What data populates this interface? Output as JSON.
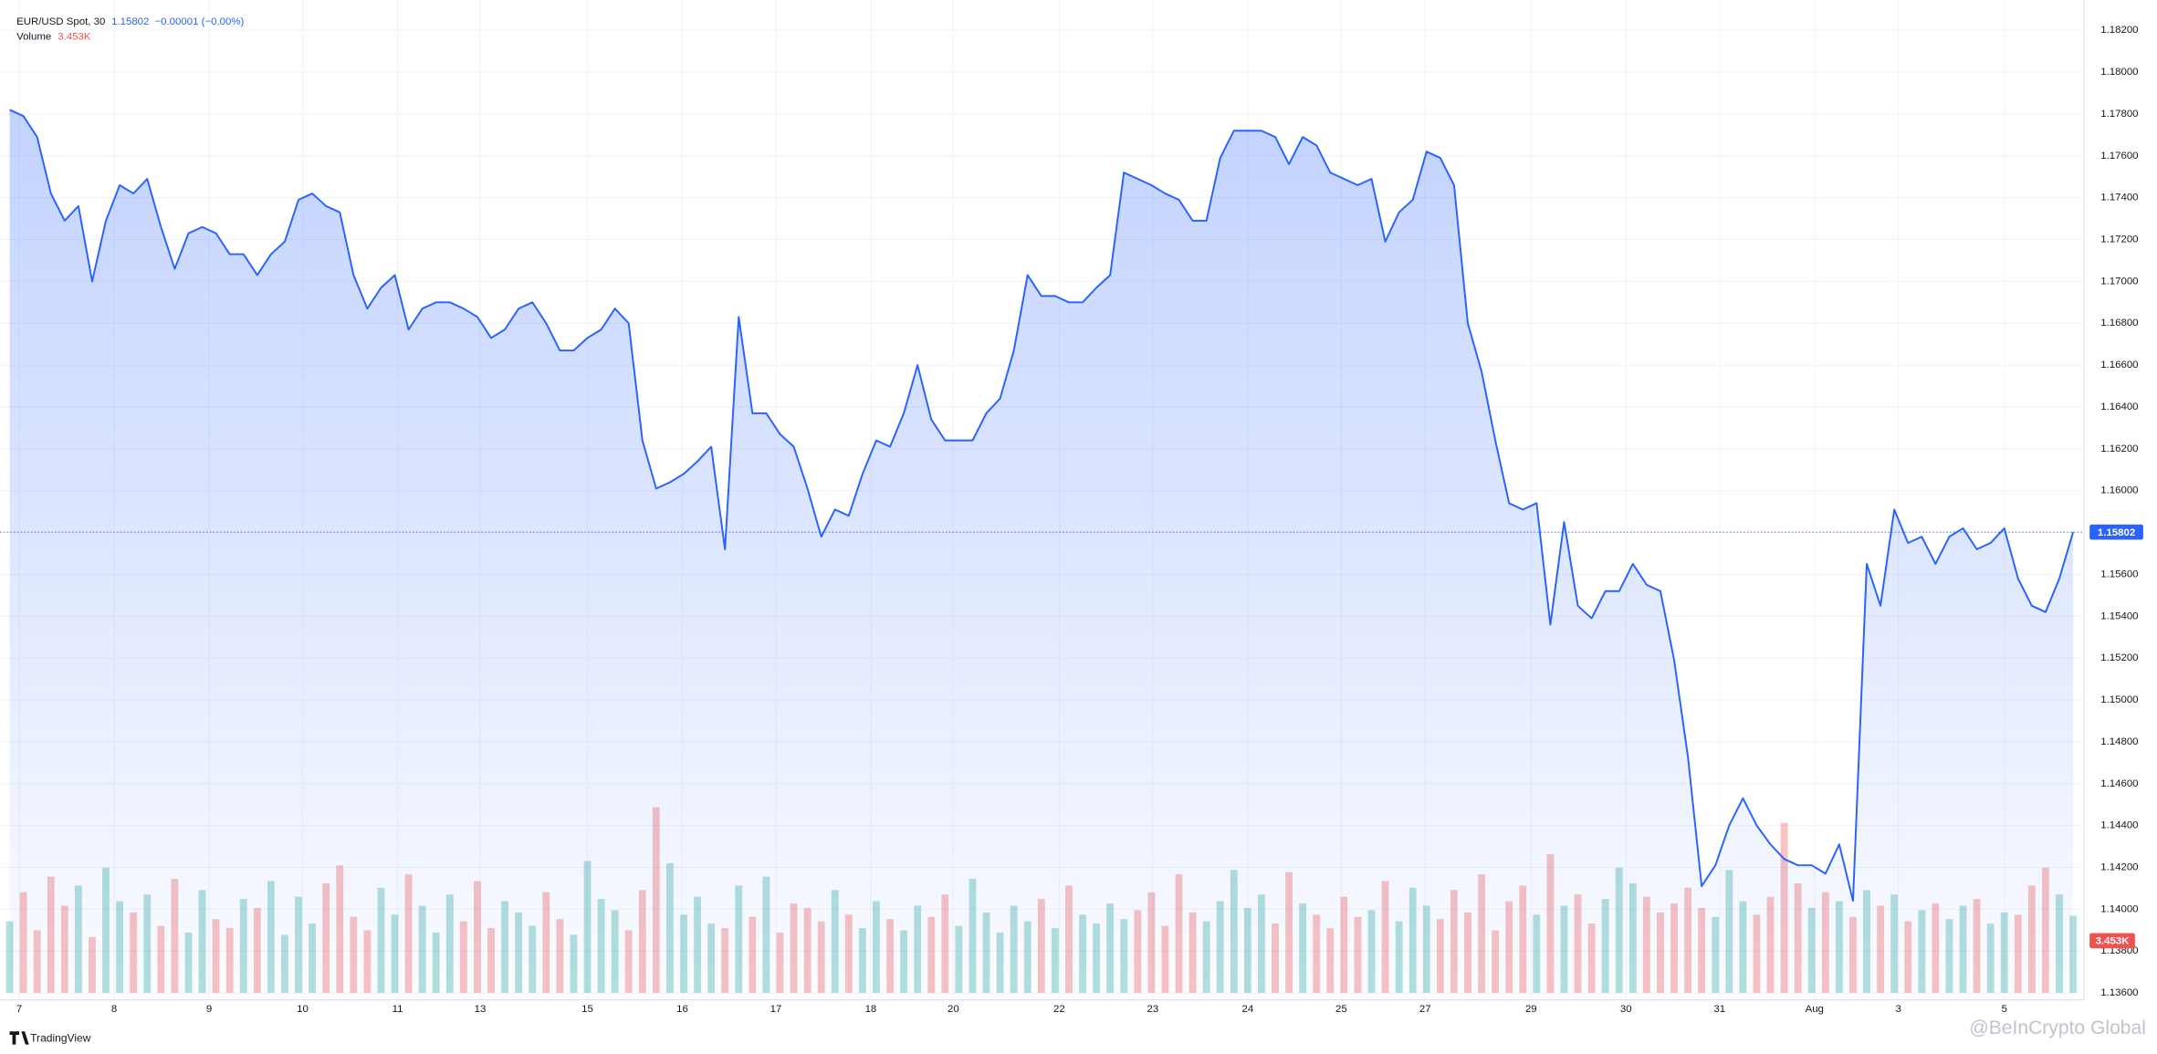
{
  "chart_data": {
    "type": "area",
    "title": "EUR/USD Spot, 30",
    "change": "−0.00001 (−0.00%)",
    "brand": "TradingView",
    "watermark": "@BeInCrypto Global",
    "series": [
      {
        "name": "EUR/USD Spot",
        "color": "#2962ff",
        "values": [
          1.1782,
          1.1779,
          1.1769,
          1.1742,
          1.1729,
          1.1736,
          1.17,
          1.1729,
          1.1746,
          1.1742,
          1.1749,
          1.1726,
          1.1706,
          1.1723,
          1.1726,
          1.1723,
          1.1713,
          1.1713,
          1.1703,
          1.1713,
          1.1719,
          1.1739,
          1.1742,
          1.1736,
          1.1733,
          1.1703,
          1.1687,
          1.1697,
          1.1703,
          1.1677,
          1.1687,
          1.169,
          1.169,
          1.1687,
          1.1683,
          1.1673,
          1.1677,
          1.1687,
          1.169,
          1.168,
          1.1667,
          1.1667,
          1.1673,
          1.1677,
          1.1687,
          1.168,
          1.1624,
          1.1601,
          1.1604,
          1.1608,
          1.1614,
          1.1621,
          1.1572,
          1.1683,
          1.1637,
          1.1637,
          1.1627,
          1.1621,
          1.1601,
          1.1578,
          1.1591,
          1.1588,
          1.1608,
          1.1624,
          1.1621,
          1.1637,
          1.166,
          1.1634,
          1.1624,
          1.1624,
          1.1624,
          1.1637,
          1.1644,
          1.1667,
          1.1703,
          1.1693,
          1.1693,
          1.169,
          1.169,
          1.1697,
          1.1703,
          1.1752,
          1.1749,
          1.1746,
          1.1742,
          1.1739,
          1.1729,
          1.1729,
          1.1759,
          1.1772,
          1.1772,
          1.1772,
          1.1769,
          1.1756,
          1.1769,
          1.1765,
          1.1752,
          1.1749,
          1.1746,
          1.1749,
          1.1719,
          1.1733,
          1.1739,
          1.1762,
          1.1759,
          1.1746,
          1.168,
          1.1657,
          1.1624,
          1.1594,
          1.1591,
          1.1594,
          1.1536,
          1.1585,
          1.1545,
          1.1539,
          1.1552,
          1.1552,
          1.1565,
          1.1555,
          1.1552,
          1.1519,
          1.1473,
          1.1411,
          1.1421,
          1.144,
          1.1453,
          1.144,
          1.1431,
          1.1424,
          1.1421,
          1.1421,
          1.1417,
          1.1431,
          1.1404,
          1.1565,
          1.1545,
          1.1591,
          1.1575,
          1.1578,
          1.1565,
          1.1578,
          1.1582,
          1.1572,
          1.1575,
          1.1582,
          1.1558,
          1.1545,
          1.1542,
          1.1558,
          1.15802
        ]
      }
    ],
    "volume": {
      "name": "Volume",
      "last_label": "3.453K",
      "up_color": "#26a69a",
      "down_color": "#ef5350",
      "values": [
        3.2,
        4.5,
        2.8,
        5.2,
        3.9,
        4.8,
        2.5,
        5.6,
        4.1,
        3.6,
        4.4,
        3.0,
        5.1,
        2.7,
        4.6,
        3.3,
        2.9,
        4.2,
        3.8,
        5.0,
        2.6,
        4.3,
        3.1,
        4.9,
        5.7,
        3.4,
        2.8,
        4.7,
        3.5,
        5.3,
        3.9,
        2.7,
        4.4,
        3.2,
        5.0,
        2.9,
        4.1,
        3.6,
        3.0,
        4.5,
        3.3,
        2.6,
        5.9,
        4.2,
        3.7,
        2.8,
        4.6,
        8.3,
        5.8,
        3.5,
        4.3,
        3.1,
        2.9,
        4.8,
        3.4,
        5.2,
        2.7,
        4.0,
        3.8,
        3.2,
        4.6,
        3.5,
        2.9,
        4.1,
        3.3,
        2.8,
        3.9,
        3.4,
        4.4,
        3.0,
        5.1,
        3.6,
        2.7,
        3.9,
        3.2,
        4.2,
        2.9,
        4.8,
        3.5,
        3.1,
        4.0,
        3.3,
        3.7,
        4.5,
        3.0,
        5.3,
        3.6,
        3.2,
        4.1,
        5.5,
        3.8,
        4.4,
        3.1,
        5.4,
        4.0,
        3.5,
        2.9,
        4.3,
        3.4,
        3.7,
        5.0,
        3.2,
        4.7,
        3.9,
        3.3,
        4.6,
        3.6,
        5.3,
        2.8,
        4.1,
        4.8,
        3.5,
        6.2,
        3.9,
        4.4,
        3.1,
        4.2,
        5.6,
        4.9,
        4.3,
        3.6,
        4.0,
        4.7,
        3.8,
        3.4,
        5.5,
        4.1,
        3.5,
        4.3,
        7.6,
        4.9,
        3.8,
        4.5,
        4.1,
        3.4,
        4.6,
        3.9,
        4.4,
        3.2,
        3.7,
        4.0,
        3.3,
        3.9,
        4.2,
        3.1,
        3.6,
        3.5,
        4.8,
        5.6,
        4.4,
        3.453
      ]
    },
    "xlim": [
      0,
      150
    ],
    "xticks": [
      {
        "value": 0.7,
        "label": "7"
      },
      {
        "value": 7.6,
        "label": "8"
      },
      {
        "value": 14.5,
        "label": "9"
      },
      {
        "value": 21.3,
        "label": "10"
      },
      {
        "value": 28.2,
        "label": "11"
      },
      {
        "value": 34.2,
        "label": "13"
      },
      {
        "value": 42,
        "label": "15"
      },
      {
        "value": 48.9,
        "label": "16"
      },
      {
        "value": 55.7,
        "label": "17"
      },
      {
        "value": 62.6,
        "label": "18"
      },
      {
        "value": 68.6,
        "label": "20"
      },
      {
        "value": 76.3,
        "label": "22"
      },
      {
        "value": 83.1,
        "label": "23"
      },
      {
        "value": 90,
        "label": "24"
      },
      {
        "value": 96.8,
        "label": "25"
      },
      {
        "value": 102.9,
        "label": "27"
      },
      {
        "value": 110.6,
        "label": "29"
      },
      {
        "value": 117.5,
        "label": "30"
      },
      {
        "value": 124.3,
        "label": "31"
      },
      {
        "value": 131.2,
        "label": "Aug"
      },
      {
        "value": 137.3,
        "label": "3"
      },
      {
        "value": 145,
        "label": "5"
      }
    ],
    "ylim": [
      1.136,
      1.182
    ],
    "yticks": [
      {
        "value": 1.136,
        "label": "1.13600"
      },
      {
        "value": 1.138,
        "label": "1.13800"
      },
      {
        "value": 1.14,
        "label": "1.14000"
      },
      {
        "value": 1.142,
        "label": "1.14200"
      },
      {
        "value": 1.144,
        "label": "1.14400"
      },
      {
        "value": 1.146,
        "label": "1.14600"
      },
      {
        "value": 1.148,
        "label": "1.14800"
      },
      {
        "value": 1.15,
        "label": "1.15000"
      },
      {
        "value": 1.152,
        "label": "1.15200"
      },
      {
        "value": 1.154,
        "label": "1.15400"
      },
      {
        "value": 1.156,
        "label": "1.15600"
      },
      {
        "value": 1.158,
        "label": "1.15800"
      },
      {
        "value": 1.16,
        "label": "1.16000"
      },
      {
        "value": 1.162,
        "label": "1.16200"
      },
      {
        "value": 1.164,
        "label": "1.16400"
      },
      {
        "value": 1.166,
        "label": "1.16600"
      },
      {
        "value": 1.168,
        "label": "1.16800"
      },
      {
        "value": 1.17,
        "label": "1.17000"
      },
      {
        "value": 1.172,
        "label": "1.17200"
      },
      {
        "value": 1.174,
        "label": "1.17400"
      },
      {
        "value": 1.176,
        "label": "1.17600"
      },
      {
        "value": 1.178,
        "label": "1.17800"
      },
      {
        "value": 1.18,
        "label": "1.18000"
      },
      {
        "value": 1.182,
        "label": "1.18200"
      }
    ],
    "grid": true
  }
}
